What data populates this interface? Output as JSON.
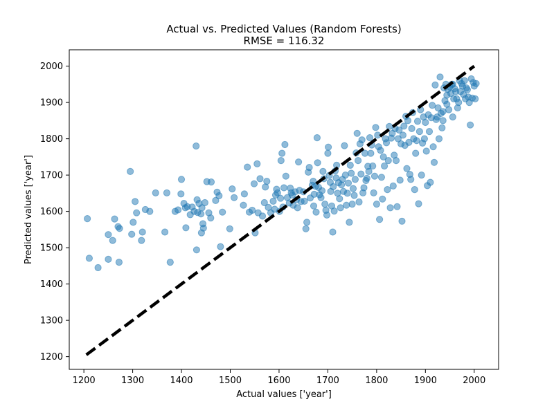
{
  "chart_data": {
    "type": "scatter",
    "title": "Actual vs. Predicted Values (Random Forests)",
    "subtitle": "RMSE = 116.32",
    "xlabel": "Actual values ['year']",
    "ylabel": "Predicted values ['year']",
    "xlim": [
      1170,
      2050
    ],
    "ylim": [
      1165,
      2045
    ],
    "xticks": [
      1200,
      1300,
      1400,
      1500,
      1600,
      1700,
      1800,
      1900,
      2000
    ],
    "yticks": [
      1200,
      1300,
      1400,
      1500,
      1600,
      1700,
      1800,
      1900,
      2000
    ],
    "grid": false,
    "colors": {
      "points": "#1f77b4",
      "ideal_line": "#000000"
    },
    "ideal_line": {
      "x": [
        1205,
        2000
      ],
      "y": [
        1205,
        2000
      ],
      "style": "dashed"
    },
    "series": [
      {
        "points": [
          [
            1207,
            1580
          ],
          [
            1211,
            1471
          ],
          [
            1229,
            1445
          ],
          [
            1250,
            1468
          ],
          [
            1250,
            1536
          ],
          [
            1259,
            1520
          ],
          [
            1263,
            1579
          ],
          [
            1270,
            1558
          ],
          [
            1272,
            1460
          ],
          [
            1273,
            1553
          ],
          [
            1295,
            1710
          ],
          [
            1298,
            1537
          ],
          [
            1301,
            1570
          ],
          [
            1305,
            1627
          ],
          [
            1308,
            1596
          ],
          [
            1318,
            1520
          ],
          [
            1320,
            1543
          ],
          [
            1326,
            1605
          ],
          [
            1335,
            1600
          ],
          [
            1347,
            1651
          ],
          [
            1366,
            1543
          ],
          [
            1370,
            1651
          ],
          [
            1377,
            1460
          ],
          [
            1387,
            1600
          ],
          [
            1393,
            1604
          ],
          [
            1399,
            1648
          ],
          [
            1400,
            1688
          ],
          [
            1405,
            1622
          ],
          [
            1408,
            1610
          ],
          [
            1409,
            1555
          ],
          [
            1412,
            1613
          ],
          [
            1418,
            1591
          ],
          [
            1422,
            1612
          ],
          [
            1426,
            1600
          ],
          [
            1430,
            1780
          ],
          [
            1431,
            1494
          ],
          [
            1432,
            1632
          ],
          [
            1433,
            1597
          ],
          [
            1436,
            1622
          ],
          [
            1440,
            1593
          ],
          [
            1441,
            1541
          ],
          [
            1442,
            1610
          ],
          [
            1444,
            1566
          ],
          [
            1445,
            1554
          ],
          [
            1448,
            1624
          ],
          [
            1452,
            1682
          ],
          [
            1456,
            1596
          ],
          [
            1460,
            1582
          ],
          [
            1461,
            1681
          ],
          [
            1470,
            1630
          ],
          [
            1473,
            1653
          ],
          [
            1477,
            1643
          ],
          [
            1480,
            1503
          ],
          [
            1484,
            1598
          ],
          [
            1499,
            1552
          ],
          [
            1504,
            1662
          ],
          [
            1508,
            1638
          ],
          [
            1527,
            1617
          ],
          [
            1529,
            1648
          ],
          [
            1535,
            1722
          ],
          [
            1539,
            1598
          ],
          [
            1545,
            1603
          ],
          [
            1549,
            1676
          ],
          [
            1551,
            1541
          ],
          [
            1555,
            1731
          ],
          [
            1557,
            1596
          ],
          [
            1561,
            1690
          ],
          [
            1566,
            1587
          ],
          [
            1570,
            1624
          ],
          [
            1572,
            1667
          ],
          [
            1575,
            1683
          ],
          [
            1578,
            1611
          ],
          [
            1583,
            1596
          ],
          [
            1588,
            1628
          ],
          [
            1591,
            1606
          ],
          [
            1593,
            1645
          ],
          [
            1595,
            1661
          ],
          [
            1597,
            1651
          ],
          [
            1601,
            1600
          ],
          [
            1603,
            1636
          ],
          [
            1604,
            1740
          ],
          [
            1606,
            1760
          ],
          [
            1608,
            1612
          ],
          [
            1610,
            1665
          ],
          [
            1612,
            1784
          ],
          [
            1614,
            1697
          ],
          [
            1617,
            1638
          ],
          [
            1621,
            1623
          ],
          [
            1623,
            1664
          ],
          [
            1625,
            1651
          ],
          [
            1627,
            1645
          ],
          [
            1629,
            1617
          ],
          [
            1633,
            1654
          ],
          [
            1636,
            1632
          ],
          [
            1638,
            1610
          ],
          [
            1640,
            1736
          ],
          [
            1642,
            1658
          ],
          [
            1645,
            1627
          ],
          [
            1650,
            1654
          ],
          [
            1652,
            1628
          ],
          [
            1655,
            1552
          ],
          [
            1657,
            1570
          ],
          [
            1660,
            1708
          ],
          [
            1662,
            1721
          ],
          [
            1664,
            1637
          ],
          [
            1668,
            1672
          ],
          [
            1670,
            1683
          ],
          [
            1671,
            1615
          ],
          [
            1672,
            1647
          ],
          [
            1675,
            1669
          ],
          [
            1676,
            1598
          ],
          [
            1678,
            1803
          ],
          [
            1679,
            1734
          ],
          [
            1681,
            1666
          ],
          [
            1683,
            1646
          ],
          [
            1686,
            1638
          ],
          [
            1688,
            1657
          ],
          [
            1690,
            1710
          ],
          [
            1692,
            1690
          ],
          [
            1694,
            1620
          ],
          [
            1696,
            1603
          ],
          [
            1698,
            1590
          ],
          [
            1700,
            1760
          ],
          [
            1701,
            1777
          ],
          [
            1703,
            1699
          ],
          [
            1705,
            1680
          ],
          [
            1706,
            1655
          ],
          [
            1708,
            1615
          ],
          [
            1710,
            1543
          ],
          [
            1711,
            1668
          ],
          [
            1713,
            1601
          ],
          [
            1715,
            1711
          ],
          [
            1717,
            1692
          ],
          [
            1718,
            1727
          ],
          [
            1720,
            1650
          ],
          [
            1722,
            1679
          ],
          [
            1724,
            1635
          ],
          [
            1726,
            1610
          ],
          [
            1728,
            1673
          ],
          [
            1730,
            1688
          ],
          [
            1732,
            1655
          ],
          [
            1734,
            1781
          ],
          [
            1736,
            1700
          ],
          [
            1738,
            1617
          ],
          [
            1740,
            1650
          ],
          [
            1742,
            1678
          ],
          [
            1744,
            1570
          ],
          [
            1746,
            1727
          ],
          [
            1748,
            1705
          ],
          [
            1750,
            1620
          ],
          [
            1752,
            1663
          ],
          [
            1754,
            1644
          ],
          [
            1756,
            1688
          ],
          [
            1758,
            1761
          ],
          [
            1760,
            1815
          ],
          [
            1762,
            1740
          ],
          [
            1764,
            1626
          ],
          [
            1766,
            1786
          ],
          [
            1768,
            1703
          ],
          [
            1770,
            1797
          ],
          [
            1772,
            1651
          ],
          [
            1774,
            1665
          ],
          [
            1776,
            1760
          ],
          [
            1778,
            1685
          ],
          [
            1780,
            1691
          ],
          [
            1782,
            1724
          ],
          [
            1784,
            1710
          ],
          [
            1786,
            1803
          ],
          [
            1788,
            1760
          ],
          [
            1790,
            1783
          ],
          [
            1792,
            1725
          ],
          [
            1794,
            1651
          ],
          [
            1796,
            1697
          ],
          [
            1798,
            1831
          ],
          [
            1800,
            1620
          ],
          [
            1802,
            1810
          ],
          [
            1804,
            1778
          ],
          [
            1806,
            1578
          ],
          [
            1808,
            1768
          ],
          [
            1810,
            1694
          ],
          [
            1812,
            1634
          ],
          [
            1814,
            1750
          ],
          [
            1816,
            1725
          ],
          [
            1818,
            1800
          ],
          [
            1820,
            1789
          ],
          [
            1822,
            1660
          ],
          [
            1824,
            1740
          ],
          [
            1826,
            1834
          ],
          [
            1828,
            1610
          ],
          [
            1830,
            1802
          ],
          [
            1832,
            1815
          ],
          [
            1834,
            1670
          ],
          [
            1836,
            1755
          ],
          [
            1838,
            1828
          ],
          [
            1840,
            1740
          ],
          [
            1842,
            1613
          ],
          [
            1844,
            1800
          ],
          [
            1846,
            1824
          ],
          [
            1848,
            1686
          ],
          [
            1850,
            1786
          ],
          [
            1852,
            1573
          ],
          [
            1854,
            1810
          ],
          [
            1856,
            1835
          ],
          [
            1858,
            1782
          ],
          [
            1860,
            1862
          ],
          [
            1862,
            1718
          ],
          [
            1864,
            1850
          ],
          [
            1866,
            1790
          ],
          [
            1868,
            1702
          ],
          [
            1870,
            1688
          ],
          [
            1872,
            1828
          ],
          [
            1874,
            1872
          ],
          [
            1876,
            1800
          ],
          [
            1878,
            1660
          ],
          [
            1880,
            1760
          ],
          [
            1882,
            1795
          ],
          [
            1884,
            1848
          ],
          [
            1886,
            1621
          ],
          [
            1888,
            1820
          ],
          [
            1890,
            1880
          ],
          [
            1892,
            1700
          ],
          [
            1894,
            1788
          ],
          [
            1896,
            1860
          ],
          [
            1898,
            1800
          ],
          [
            1900,
            1845
          ],
          [
            1902,
            1766
          ],
          [
            1904,
            1671
          ],
          [
            1906,
            1866
          ],
          [
            1908,
            1820
          ],
          [
            1910,
            1680
          ],
          [
            1912,
            1858
          ],
          [
            1914,
            1892
          ],
          [
            1916,
            1778
          ],
          [
            1918,
            1735
          ],
          [
            1920,
            1948
          ],
          [
            1922,
            1853
          ],
          [
            1924,
            1860
          ],
          [
            1926,
            1885
          ],
          [
            1928,
            1800
          ],
          [
            1930,
            1970
          ],
          [
            1932,
            1870
          ],
          [
            1934,
            1830
          ],
          [
            1936,
            1850
          ],
          [
            1938,
            1940
          ],
          [
            1940,
            1905
          ],
          [
            1942,
            1950
          ],
          [
            1944,
            1895
          ],
          [
            1946,
            1936
          ],
          [
            1948,
            1880
          ],
          [
            1950,
            1943
          ],
          [
            1952,
            1925
          ],
          [
            1954,
            1950
          ],
          [
            1956,
            1860
          ],
          [
            1958,
            1910
          ],
          [
            1960,
            1938
          ],
          [
            1962,
            1930
          ],
          [
            1964,
            1910
          ],
          [
            1966,
            1885
          ],
          [
            1968,
            1900
          ],
          [
            1970,
            1960
          ],
          [
            1972,
            1930
          ],
          [
            1974,
            1952
          ],
          [
            1976,
            1945
          ],
          [
            1978,
            1922
          ],
          [
            1980,
            1960
          ],
          [
            1982,
            1910
          ],
          [
            1984,
            1940
          ],
          [
            1986,
            1935
          ],
          [
            1988,
            1915
          ],
          [
            1990,
            1900
          ],
          [
            1992,
            1838
          ],
          [
            1994,
            1965
          ],
          [
            1996,
            1912
          ],
          [
            1998,
            1955
          ],
          [
            2000,
            1945
          ],
          [
            2002,
            1910
          ],
          [
            2004,
            1952
          ],
          [
            1944,
            1920
          ],
          [
            1936,
            1875
          ],
          [
            1956,
            1950
          ]
        ]
      }
    ]
  }
}
